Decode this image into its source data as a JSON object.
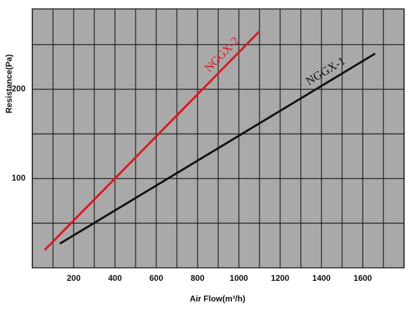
{
  "chart_data": {
    "type": "line",
    "xlabel": "Air Flow(m³/h)",
    "ylabel": "Resistance(Pa)",
    "xlim": [
      0,
      1800
    ],
    "ylim": [
      0,
      290
    ],
    "xticks": [
      200,
      400,
      600,
      800,
      1000,
      1200,
      1400,
      1600
    ],
    "yticks": [
      100,
      200
    ],
    "xminorticks": [
      0,
      100,
      300,
      500,
      700,
      900,
      1100,
      1300,
      1500,
      1700,
      1800
    ],
    "yminorticks": [
      50,
      150,
      250
    ],
    "grid": true,
    "background": "#a9a9a9",
    "series": [
      {
        "name": "NGGX-2",
        "color": "#e0141e",
        "x": [
          60,
          1100
        ],
        "values": [
          20,
          265
        ]
      },
      {
        "name": "NGGX-1",
        "color": "#111111",
        "x": [
          133,
          1660
        ],
        "values": [
          27,
          240
        ]
      }
    ]
  }
}
